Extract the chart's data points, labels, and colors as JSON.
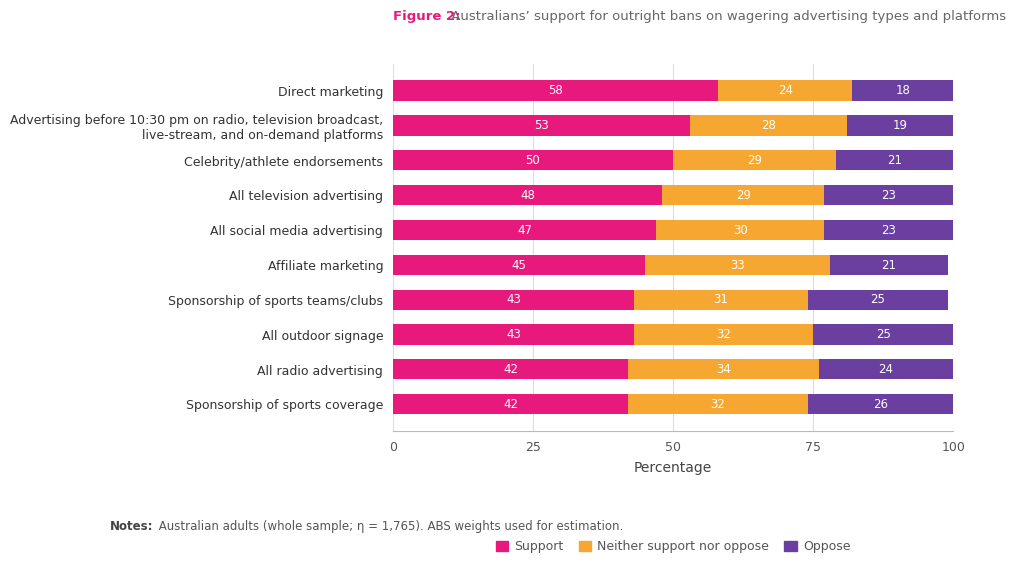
{
  "title_bold": "Figure 2:",
  "title_rest": " Australians’ support for outright bans on wagering advertising types and platforms",
  "categories": [
    "Sponsorship of sports coverage",
    "All radio advertising",
    "All outdoor signage",
    "Sponsorship of sports teams/clubs",
    "Affiliate marketing",
    "All social media advertising",
    "All television advertising",
    "Celebrity/athlete endorsements",
    "Advertising before 10:30 pm on radio, television broadcast,\nlive-stream, and on-demand platforms",
    "Direct marketing"
  ],
  "support": [
    42,
    42,
    43,
    43,
    45,
    47,
    48,
    50,
    53,
    58
  ],
  "neither": [
    32,
    34,
    32,
    31,
    33,
    30,
    29,
    29,
    28,
    24
  ],
  "oppose": [
    26,
    24,
    25,
    25,
    21,
    23,
    23,
    21,
    19,
    18
  ],
  "support_color": "#E8197D",
  "neither_color": "#F5A732",
  "oppose_color": "#6B3FA0",
  "xlabel": "Percentage",
  "xlim": [
    0,
    100
  ],
  "xticks": [
    0,
    25,
    50,
    75,
    100
  ],
  "legend_labels": [
    "Support",
    "Neither support nor oppose",
    "Oppose"
  ],
  "note_bold": "Notes:",
  "note_rest": " Australian adults (whole sample; η = 1,765). ABS weights used for estimation.",
  "background_color": "#FFFFFF",
  "bar_height": 0.58,
  "title_color_bold": "#E8197D",
  "title_color_rest": "#666666"
}
